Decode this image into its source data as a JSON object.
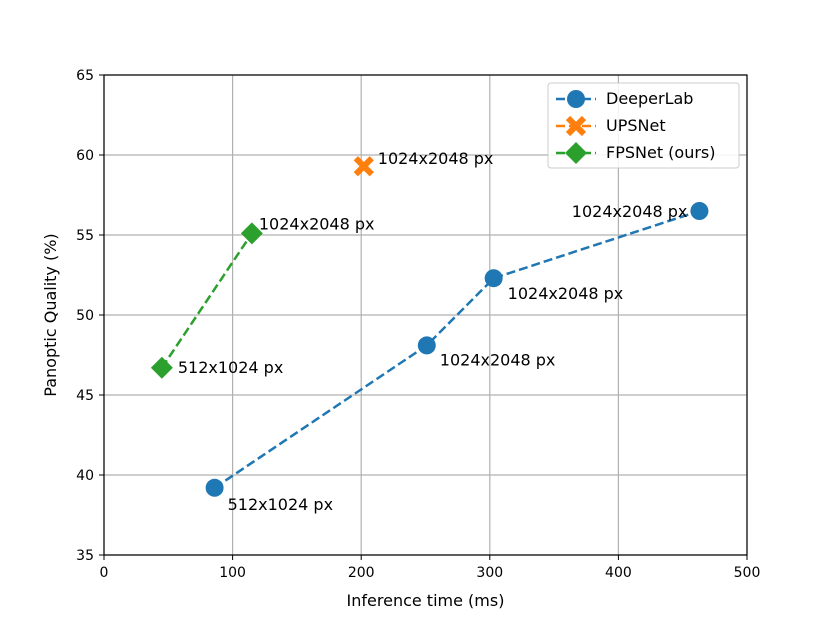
{
  "chart_data": {
    "type": "line",
    "title": "",
    "xlabel": "Inference time (ms)",
    "ylabel": "Panoptic Quality (%)",
    "xlim": [
      0,
      500
    ],
    "ylim": [
      35,
      65
    ],
    "xticks": [
      0,
      100,
      200,
      300,
      400,
      500
    ],
    "yticks": [
      35,
      40,
      45,
      50,
      55,
      60,
      65
    ],
    "grid": true,
    "legend_position": "top-right",
    "series": [
      {
        "name": "DeeperLab",
        "color": "#1f77b4",
        "marker": "circle",
        "line": "dashed",
        "points": [
          {
            "x": 86,
            "y": 39.2,
            "label": "512x1024 px"
          },
          {
            "x": 251,
            "y": 48.1,
            "label": "1024x2048 px"
          },
          {
            "x": 303,
            "y": 52.3,
            "label": "1024x2048 px"
          },
          {
            "x": 463,
            "y": 56.5,
            "label": "1024x2048 px"
          }
        ]
      },
      {
        "name": "UPSNet",
        "color": "#ff7f0e",
        "marker": "x",
        "line": "dashed",
        "points": [
          {
            "x": 202,
            "y": 59.3,
            "label": "1024x2048 px"
          }
        ]
      },
      {
        "name": "FPSNet (ours)",
        "color": "#2ca02c",
        "marker": "diamond",
        "line": "dashed",
        "points": [
          {
            "x": 45,
            "y": 46.7,
            "label": "512x1024 px"
          },
          {
            "x": 115,
            "y": 55.1,
            "label": "1024x2048 px"
          }
        ]
      }
    ]
  }
}
